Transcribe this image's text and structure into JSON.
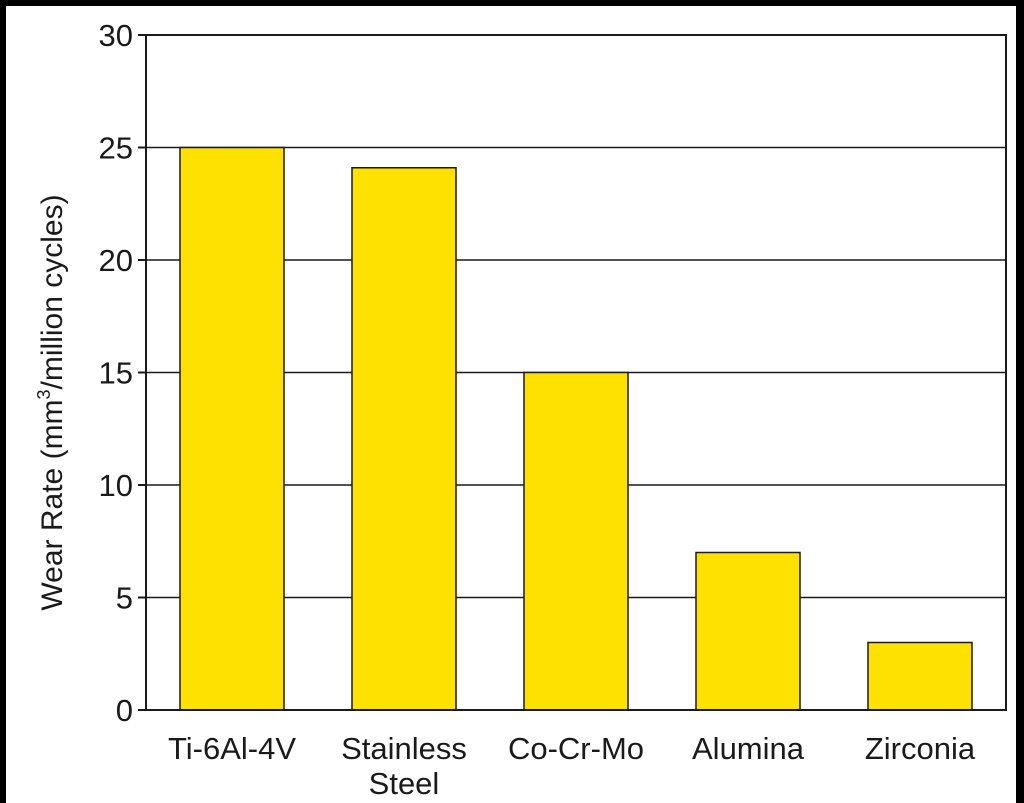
{
  "chart_data": {
    "type": "bar",
    "title": "",
    "xlabel": "",
    "ylabel": {
      "prefix": "Wear Rate (mm",
      "superscript": "3",
      "suffix": "/million cycles)"
    },
    "categories": [
      [
        "Ti-6Al-4V"
      ],
      [
        "Stainless",
        "Steel"
      ],
      [
        "Co-Cr-Mo"
      ],
      [
        "Alumina"
      ],
      [
        "Zirconia"
      ]
    ],
    "values": [
      25,
      24.1,
      15,
      7,
      3
    ],
    "ylim": [
      0,
      30
    ],
    "yticks": [
      0,
      5,
      10,
      15,
      20,
      25,
      30
    ],
    "grid": true,
    "legend": "none",
    "colors": {
      "bar_fill": "#ffe100",
      "bar_stroke": "#1a1a1a",
      "grid": "#1a1a1a",
      "background": "#000000",
      "panel": "#ffffff"
    }
  }
}
